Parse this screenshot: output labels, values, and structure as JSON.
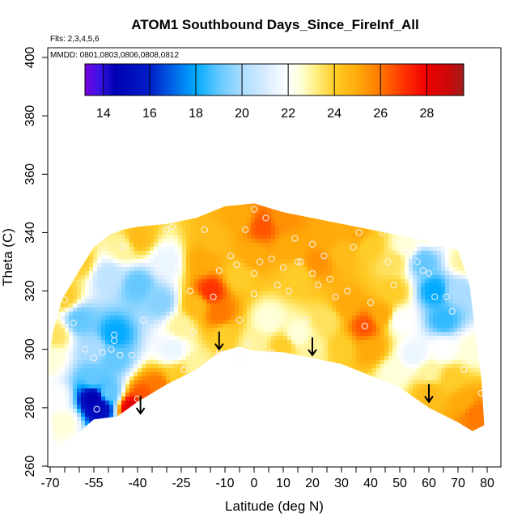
{
  "chart_data": {
    "type": "heatmap",
    "title": "ATOM1 Southbound Days_Since_FireInf_All",
    "subtitle_flights": "Flts: 2,3,4,5,6",
    "subtitle_dates": "MMDD: 0801,0803,0806,0808,0812",
    "xlabel": "Latitude (deg N)",
    "ylabel": "Theta (C)",
    "xlim": [
      -70,
      80
    ],
    "ylim": [
      260,
      400
    ],
    "x_ticks": [
      -70,
      -55,
      -40,
      -25,
      -10,
      0,
      10,
      20,
      30,
      40,
      50,
      60,
      70,
      80
    ],
    "x_tick_labels": [
      "-70",
      "-55",
      "-40",
      "-25",
      "-10",
      "0",
      "10",
      "20",
      "30",
      "40",
      "50",
      "60",
      "70",
      "80"
    ],
    "x_minor_ticks": [
      -65,
      -60,
      -50,
      -45,
      -35,
      -30,
      -20,
      -15,
      -5,
      5,
      15,
      25,
      35,
      45,
      55,
      65,
      75
    ],
    "y_ticks": [
      260,
      280,
      300,
      320,
      340,
      360,
      380,
      400
    ],
    "y_tick_labels": [
      "260",
      "280",
      "300",
      "320",
      "340",
      "360",
      "380",
      "400"
    ],
    "colorbar": {
      "range": [
        13.2,
        29.6
      ],
      "ticks": [
        14,
        16,
        18,
        20,
        22,
        24,
        26,
        28
      ],
      "tick_labels": [
        "14",
        "16",
        "18",
        "20",
        "22",
        "24",
        "26",
        "28"
      ],
      "orientation": "horizontal",
      "placement": "top"
    },
    "upper_boundary": [
      [
        -71.5,
        291
      ],
      [
        -69,
        306
      ],
      [
        -66,
        317
      ],
      [
        -60,
        327
      ],
      [
        -55,
        335
      ],
      [
        -50,
        339
      ],
      [
        -45,
        341
      ],
      [
        -40,
        342
      ],
      [
        -30,
        343
      ],
      [
        -20,
        345
      ],
      [
        -10,
        349
      ],
      [
        0,
        350
      ],
      [
        10,
        347
      ],
      [
        20,
        345
      ],
      [
        30,
        343
      ],
      [
        40,
        341
      ],
      [
        50,
        339
      ],
      [
        60,
        337
      ],
      [
        70,
        334
      ],
      [
        74,
        322
      ],
      [
        76,
        305
      ],
      [
        78,
        290
      ],
      [
        79,
        274
      ]
    ],
    "lower_boundary": [
      [
        79,
        274
      ],
      [
        75,
        272
      ],
      [
        70,
        275
      ],
      [
        60,
        280
      ],
      [
        50,
        287
      ],
      [
        40,
        291
      ],
      [
        30,
        295
      ],
      [
        20,
        297
      ],
      [
        10,
        299
      ],
      [
        0,
        299.5
      ],
      [
        -5,
        301
      ],
      [
        -12,
        299
      ],
      [
        -20,
        293
      ],
      [
        -30,
        288
      ],
      [
        -40,
        282
      ],
      [
        -47,
        277
      ],
      [
        -55,
        276
      ],
      [
        -62,
        270
      ],
      [
        -66,
        267
      ],
      [
        -68.5,
        266
      ]
    ],
    "value_anchors": [
      [
        -68,
        283,
        22
      ],
      [
        -68,
        305,
        23.5
      ],
      [
        -65,
        318,
        24
      ],
      [
        -55,
        290,
        19
      ],
      [
        -55,
        283,
        14.5
      ],
      [
        -53,
        280,
        15
      ],
      [
        -50,
        285,
        19
      ],
      [
        -48,
        297,
        19
      ],
      [
        -55,
        300,
        20
      ],
      [
        -48,
        305,
        18
      ],
      [
        -60,
        310,
        19
      ],
      [
        -50,
        325,
        20.5
      ],
      [
        -40,
        322,
        19
      ],
      [
        -32,
        316,
        19.5
      ],
      [
        -30,
        330,
        21.5
      ],
      [
        -40,
        338,
        24.5
      ],
      [
        -45,
        335,
        23
      ],
      [
        -60,
        330,
        24
      ],
      [
        -42,
        280,
        28.5
      ],
      [
        -38,
        284,
        26.5
      ],
      [
        -33,
        287,
        26
      ],
      [
        -26,
        291,
        24
      ],
      [
        -20,
        294,
        23
      ],
      [
        -28,
        300,
        21.5
      ],
      [
        -25,
        308,
        23
      ],
      [
        -20,
        315,
        24.5
      ],
      [
        -15,
        320,
        27
      ],
      [
        -12,
        312,
        26
      ],
      [
        -10,
        305,
        24
      ],
      [
        -18,
        330,
        25
      ],
      [
        -14,
        338,
        24.5
      ],
      [
        -5,
        325,
        24
      ],
      [
        0,
        332,
        25
      ],
      [
        3,
        342,
        26.5
      ],
      [
        -5,
        345,
        25
      ],
      [
        10,
        345,
        25.5
      ],
      [
        12,
        335,
        25
      ],
      [
        15,
        325,
        24
      ],
      [
        22,
        330,
        25.5
      ],
      [
        25,
        338,
        25
      ],
      [
        30,
        333,
        24.5
      ],
      [
        35,
        340,
        25
      ],
      [
        5,
        310,
        22.5
      ],
      [
        15,
        305,
        22.5
      ],
      [
        25,
        310,
        23.5
      ],
      [
        32,
        315,
        25
      ],
      [
        38,
        308,
        26.5
      ],
      [
        44,
        312,
        25
      ],
      [
        40,
        300,
        25
      ],
      [
        30,
        300,
        24
      ],
      [
        20,
        300,
        23
      ],
      [
        10,
        301,
        24
      ],
      [
        0,
        302,
        23
      ],
      [
        48,
        320,
        24
      ],
      [
        48,
        330,
        23.5
      ],
      [
        40,
        335,
        24
      ],
      [
        52,
        335,
        22.5
      ],
      [
        58,
        330,
        19
      ],
      [
        62,
        320,
        18
      ],
      [
        65,
        310,
        18.5
      ],
      [
        70,
        320,
        20
      ],
      [
        72,
        330,
        23
      ],
      [
        60,
        340,
        22.5
      ],
      [
        50,
        310,
        22
      ],
      [
        55,
        298,
        21.5
      ],
      [
        48,
        292,
        22.5
      ],
      [
        60,
        292,
        23
      ],
      [
        68,
        290,
        24
      ],
      [
        72,
        282,
        25
      ],
      [
        76,
        278,
        26
      ],
      [
        65,
        300,
        22
      ],
      [
        75,
        300,
        22.5
      ],
      [
        60,
        285,
        24.5
      ],
      [
        -70,
        297,
        22.5
      ],
      [
        -65,
        275,
        22.5
      ]
    ],
    "observation_points": [
      [
        -65,
        317
      ],
      [
        -62,
        309
      ],
      [
        -58,
        300
      ],
      [
        -55,
        297
      ],
      [
        -54,
        279.5
      ],
      [
        -52,
        299
      ],
      [
        -49,
        300
      ],
      [
        -48,
        303
      ],
      [
        -48,
        305
      ],
      [
        -46,
        298
      ],
      [
        -45,
        335
      ],
      [
        -42,
        298
      ],
      [
        -40,
        283
      ],
      [
        -38,
        310
      ],
      [
        -32,
        334
      ],
      [
        -30,
        341
      ],
      [
        -28,
        342
      ],
      [
        -26,
        326
      ],
      [
        -24,
        293
      ],
      [
        -22,
        320
      ],
      [
        -21,
        306
      ],
      [
        -17,
        341
      ],
      [
        -14,
        318
      ],
      [
        -12,
        327
      ],
      [
        -12,
        299
      ],
      [
        -8,
        332
      ],
      [
        -6,
        329
      ],
      [
        -5,
        310
      ],
      [
        -5,
        296
      ],
      [
        -3,
        341
      ],
      [
        -2,
        302
      ],
      [
        0,
        348
      ],
      [
        0,
        326
      ],
      [
        0,
        319
      ],
      [
        2,
        330
      ],
      [
        4,
        345
      ],
      [
        6,
        331
      ],
      [
        6,
        299
      ],
      [
        8,
        322
      ],
      [
        10,
        328
      ],
      [
        12,
        320
      ],
      [
        14,
        338
      ],
      [
        15,
        330
      ],
      [
        16,
        330
      ],
      [
        18,
        310
      ],
      [
        20,
        336
      ],
      [
        20,
        326
      ],
      [
        22,
        322
      ],
      [
        24,
        332
      ],
      [
        26,
        324
      ],
      [
        28,
        318
      ],
      [
        32,
        320
      ],
      [
        34,
        335
      ],
      [
        36,
        340
      ],
      [
        38,
        308
      ],
      [
        40,
        316
      ],
      [
        44,
        340
      ],
      [
        46,
        330
      ],
      [
        48,
        322
      ],
      [
        52,
        334
      ],
      [
        56,
        330
      ],
      [
        58,
        327
      ],
      [
        60,
        326
      ],
      [
        62,
        318
      ],
      [
        66,
        318
      ],
      [
        68,
        313
      ],
      [
        70,
        305
      ],
      [
        72,
        293
      ],
      [
        78,
        285
      ]
    ],
    "arrows": [
      [
        -12,
        300
      ],
      [
        -39,
        278
      ],
      [
        20,
        298
      ],
      [
        60,
        282
      ]
    ]
  }
}
